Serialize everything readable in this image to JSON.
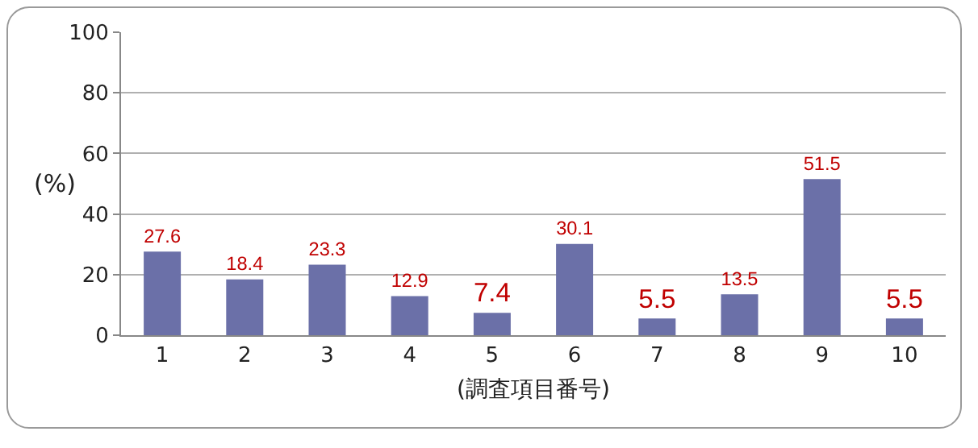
{
  "chart_data": {
    "type": "bar",
    "xlabel": "(調査項目番号)",
    "ylabel": "(%)",
    "categories": [
      "1",
      "2",
      "3",
      "4",
      "5",
      "6",
      "7",
      "8",
      "9",
      "10"
    ],
    "values": [
      27.6,
      18.4,
      23.3,
      12.9,
      7.4,
      30.1,
      5.5,
      13.5,
      51.5,
      5.5
    ],
    "color": "#6b70a8",
    "ylim": [
      0,
      100
    ],
    "yticks": [
      0,
      20,
      40,
      60,
      80,
      100
    ],
    "grid": "y",
    "data_labels": true,
    "legend": false
  }
}
